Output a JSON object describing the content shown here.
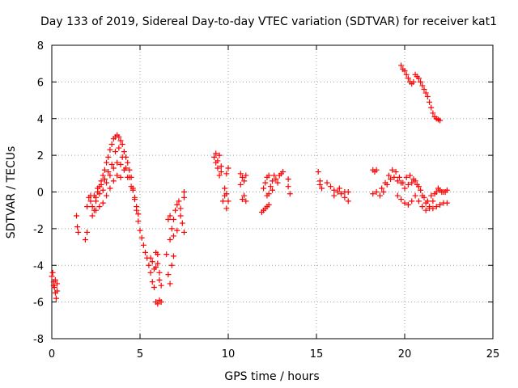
{
  "chart_data": {
    "type": "scatter",
    "title": "Day 133 of 2019, Sidereal Day-to-day VTEC variation (SDTVAR) for receiver kat1",
    "xlabel": "GPS time / hours",
    "ylabel": "SDTVAR / TECUs",
    "xlim": [
      0,
      25
    ],
    "ylim": [
      -8,
      8
    ],
    "xticks": [
      "0",
      "5",
      "10",
      "15",
      "20",
      "25"
    ],
    "yticks": [
      "-8",
      "-6",
      "-4",
      "-2",
      "0",
      "2",
      "4",
      "6",
      "8"
    ],
    "grid": true,
    "marker": "plus",
    "color": "#ff0000",
    "series": [
      {
        "name": "kat1",
        "points": [
          [
            0.0,
            -4.6
          ],
          [
            0.05,
            -4.4
          ],
          [
            0.1,
            -4.9
          ],
          [
            0.15,
            -5.2
          ],
          [
            0.2,
            -5.5
          ],
          [
            0.25,
            -5.8
          ],
          [
            0.3,
            -5.4
          ],
          [
            0.2,
            -4.8
          ],
          [
            0.1,
            -5.1
          ],
          [
            0.3,
            -5.0
          ],
          [
            1.4,
            -1.3
          ],
          [
            1.45,
            -1.9
          ],
          [
            1.5,
            -2.2
          ],
          [
            1.9,
            -2.6
          ],
          [
            2.0,
            -2.2
          ],
          [
            2.0,
            -0.8
          ],
          [
            2.1,
            -0.3
          ],
          [
            2.2,
            -0.2
          ],
          [
            2.3,
            -1.3
          ],
          [
            2.4,
            -1.0
          ],
          [
            2.5,
            -0.5
          ],
          [
            2.6,
            0.0
          ],
          [
            2.7,
            0.3
          ],
          [
            2.8,
            0.6
          ],
          [
            2.9,
            0.9
          ],
          [
            3.0,
            1.2
          ],
          [
            3.1,
            1.6
          ],
          [
            3.2,
            1.9
          ],
          [
            3.3,
            2.3
          ],
          [
            3.4,
            2.6
          ],
          [
            3.5,
            2.9
          ],
          [
            3.6,
            3.0
          ],
          [
            3.7,
            3.1
          ],
          [
            3.8,
            3.0
          ],
          [
            3.9,
            2.8
          ],
          [
            4.0,
            2.6
          ],
          [
            4.1,
            2.2
          ],
          [
            4.2,
            1.9
          ],
          [
            4.3,
            1.6
          ],
          [
            4.4,
            1.2
          ],
          [
            4.5,
            0.8
          ],
          [
            4.6,
            0.2
          ],
          [
            4.7,
            -0.4
          ],
          [
            4.8,
            -1.0
          ],
          [
            4.9,
            -1.6
          ],
          [
            2.2,
            -0.5
          ],
          [
            2.4,
            -0.2
          ],
          [
            2.6,
            0.2
          ],
          [
            2.8,
            0.4
          ],
          [
            3.0,
            0.7
          ],
          [
            3.2,
            1.1
          ],
          [
            3.4,
            1.5
          ],
          [
            3.6,
            2.2
          ],
          [
            3.8,
            2.4
          ],
          [
            4.0,
            1.9
          ],
          [
            4.2,
            1.3
          ],
          [
            4.4,
            0.8
          ],
          [
            4.6,
            0.1
          ],
          [
            4.8,
            -0.8
          ],
          [
            2.3,
            -0.8
          ],
          [
            2.5,
            -0.3
          ],
          [
            2.7,
            -0.1
          ],
          [
            2.9,
            0.1
          ],
          [
            3.1,
            0.5
          ],
          [
            3.3,
            0.9
          ],
          [
            3.5,
            1.3
          ],
          [
            3.7,
            1.6
          ],
          [
            3.9,
            1.5
          ],
          [
            4.1,
            1.2
          ],
          [
            4.3,
            0.8
          ],
          [
            4.5,
            0.3
          ],
          [
            4.7,
            -0.3
          ],
          [
            4.9,
            -1.2
          ],
          [
            2.5,
            -1.0
          ],
          [
            2.7,
            -0.8
          ],
          [
            2.9,
            -0.6
          ],
          [
            3.1,
            -0.2
          ],
          [
            3.3,
            0.2
          ],
          [
            3.5,
            0.6
          ],
          [
            3.7,
            0.9
          ],
          [
            3.9,
            0.8
          ],
          [
            5.0,
            -2.1
          ],
          [
            5.1,
            -2.5
          ],
          [
            5.2,
            -2.9
          ],
          [
            5.3,
            -3.3
          ],
          [
            5.4,
            -3.6
          ],
          [
            5.5,
            -4.0
          ],
          [
            5.6,
            -4.4
          ],
          [
            5.7,
            -4.9
          ],
          [
            5.8,
            -5.2
          ],
          [
            5.6,
            -3.6
          ],
          [
            5.7,
            -3.8
          ],
          [
            5.8,
            -4.2
          ],
          [
            5.9,
            -4.1
          ],
          [
            6.0,
            -3.9
          ],
          [
            6.1,
            -4.4
          ],
          [
            6.1,
            -4.8
          ],
          [
            6.2,
            -5.1
          ],
          [
            6.0,
            -3.4
          ],
          [
            5.9,
            -3.3
          ],
          [
            5.9,
            -6.0
          ],
          [
            6.0,
            -6.1
          ],
          [
            6.1,
            -5.9
          ],
          [
            6.2,
            -6.0
          ],
          [
            6.5,
            -3.4
          ],
          [
            6.6,
            -4.5
          ],
          [
            6.7,
            -5.0
          ],
          [
            6.8,
            -4.0
          ],
          [
            6.9,
            -3.5
          ],
          [
            6.7,
            -2.6
          ],
          [
            6.8,
            -2.0
          ],
          [
            6.9,
            -1.5
          ],
          [
            7.0,
            -1.0
          ],
          [
            7.1,
            -0.7
          ],
          [
            7.2,
            -0.5
          ],
          [
            7.3,
            -1.3
          ],
          [
            7.4,
            -1.7
          ],
          [
            7.5,
            -2.2
          ],
          [
            7.5,
            -0.3
          ],
          [
            7.5,
            0.0
          ],
          [
            6.6,
            -1.5
          ],
          [
            6.7,
            -1.3
          ],
          [
            6.9,
            -2.4
          ],
          [
            7.1,
            -2.1
          ],
          [
            7.3,
            -0.9
          ],
          [
            9.2,
            1.9
          ],
          [
            9.3,
            1.6
          ],
          [
            9.4,
            1.3
          ],
          [
            9.5,
            0.9
          ],
          [
            9.6,
            1.1
          ],
          [
            9.3,
            2.1
          ],
          [
            9.4,
            1.7
          ],
          [
            9.5,
            2.0
          ],
          [
            9.6,
            1.4
          ],
          [
            9.7,
            -0.5
          ],
          [
            9.8,
            -0.2
          ],
          [
            9.9,
            -0.1
          ],
          [
            10.0,
            -0.5
          ],
          [
            9.8,
            0.2
          ],
          [
            9.9,
            1.0
          ],
          [
            10.0,
            1.3
          ],
          [
            9.9,
            -0.9
          ],
          [
            10.7,
            1.0
          ],
          [
            10.8,
            0.8
          ],
          [
            10.9,
            0.6
          ],
          [
            11.0,
            0.9
          ],
          [
            10.8,
            -0.4
          ],
          [
            10.9,
            -0.2
          ],
          [
            11.0,
            -0.5
          ],
          [
            10.7,
            0.4
          ],
          [
            12.0,
            0.2
          ],
          [
            12.1,
            0.5
          ],
          [
            12.2,
            0.8
          ],
          [
            12.3,
            0.9
          ],
          [
            12.4,
            0.3
          ],
          [
            12.5,
            0.6
          ],
          [
            12.6,
            0.9
          ],
          [
            12.7,
            0.7
          ],
          [
            12.8,
            0.5
          ],
          [
            12.9,
            0.9
          ],
          [
            13.0,
            1.0
          ],
          [
            13.1,
            1.1
          ],
          [
            12.2,
            -0.2
          ],
          [
            12.3,
            -0.1
          ],
          [
            12.5,
            0.1
          ],
          [
            11.9,
            -1.1
          ],
          [
            12.0,
            -1.0
          ],
          [
            12.1,
            -0.9
          ],
          [
            12.2,
            -0.8
          ],
          [
            12.3,
            -0.7
          ],
          [
            13.4,
            0.7
          ],
          [
            13.4,
            0.3
          ],
          [
            13.5,
            -0.1
          ],
          [
            15.1,
            1.1
          ],
          [
            15.2,
            0.6
          ],
          [
            15.3,
            0.2
          ],
          [
            15.2,
            0.4
          ],
          [
            15.6,
            0.5
          ],
          [
            15.8,
            0.3
          ],
          [
            16.0,
            0.1
          ],
          [
            16.2,
            0.0
          ],
          [
            16.4,
            -0.1
          ],
          [
            16.6,
            -0.3
          ],
          [
            16.8,
            -0.5
          ],
          [
            16.0,
            -0.2
          ],
          [
            16.3,
            0.2
          ],
          [
            16.6,
            0.0
          ],
          [
            16.8,
            0.0
          ],
          [
            18.2,
            1.2
          ],
          [
            18.3,
            1.1
          ],
          [
            18.4,
            1.2
          ],
          [
            18.2,
            -0.1
          ],
          [
            18.4,
            0.0
          ],
          [
            18.6,
            -0.2
          ],
          [
            18.8,
            0.0
          ],
          [
            19.0,
            0.4
          ],
          [
            19.2,
            0.7
          ],
          [
            19.4,
            0.8
          ],
          [
            19.6,
            0.6
          ],
          [
            19.8,
            0.5
          ],
          [
            20.0,
            0.2
          ],
          [
            20.2,
            0.4
          ],
          [
            20.4,
            0.5
          ],
          [
            20.6,
            0.6
          ],
          [
            20.8,
            0.3
          ],
          [
            21.0,
            -0.2
          ],
          [
            21.2,
            -0.6
          ],
          [
            21.4,
            -0.8
          ],
          [
            21.6,
            -0.5
          ],
          [
            21.8,
            0.0
          ],
          [
            22.0,
            0.1
          ],
          [
            22.2,
            0.0
          ],
          [
            22.4,
            0.1
          ],
          [
            18.7,
            0.2
          ],
          [
            18.9,
            0.5
          ],
          [
            19.1,
            0.9
          ],
          [
            19.3,
            1.2
          ],
          [
            19.5,
            1.1
          ],
          [
            19.7,
            0.8
          ],
          [
            19.9,
            0.5
          ],
          [
            20.1,
            0.8
          ],
          [
            20.3,
            0.9
          ],
          [
            20.5,
            0.7
          ],
          [
            20.7,
            0.4
          ],
          [
            20.9,
            0.1
          ],
          [
            21.1,
            -0.3
          ],
          [
            21.3,
            -0.5
          ],
          [
            21.5,
            -0.2
          ],
          [
            21.7,
            -0.1
          ],
          [
            21.9,
            0.2
          ],
          [
            22.1,
            0.0
          ],
          [
            22.3,
            0.0
          ],
          [
            19.6,
            -0.2
          ],
          [
            19.8,
            -0.4
          ],
          [
            20.0,
            -0.6
          ],
          [
            20.2,
            -0.7
          ],
          [
            20.4,
            -0.5
          ],
          [
            20.6,
            -0.2
          ],
          [
            20.8,
            -0.5
          ],
          [
            21.0,
            -0.8
          ],
          [
            21.2,
            -1.0
          ],
          [
            21.4,
            -0.9
          ],
          [
            21.6,
            -0.9
          ],
          [
            21.8,
            -0.8
          ],
          [
            22.0,
            -0.7
          ],
          [
            22.2,
            -0.6
          ],
          [
            22.4,
            -0.6
          ],
          [
            19.8,
            6.9
          ],
          [
            19.9,
            6.7
          ],
          [
            20.0,
            6.6
          ],
          [
            20.1,
            6.4
          ],
          [
            20.2,
            6.2
          ],
          [
            20.3,
            6.0
          ],
          [
            20.4,
            5.9
          ],
          [
            20.5,
            6.0
          ],
          [
            20.6,
            6.4
          ],
          [
            20.7,
            6.3
          ],
          [
            20.8,
            6.2
          ],
          [
            20.9,
            6.0
          ],
          [
            21.0,
            5.8
          ],
          [
            21.1,
            5.6
          ],
          [
            21.2,
            5.4
          ],
          [
            21.3,
            5.2
          ],
          [
            21.4,
            4.9
          ],
          [
            21.5,
            4.6
          ],
          [
            21.6,
            4.3
          ],
          [
            21.7,
            4.1
          ],
          [
            21.8,
            4.0
          ],
          [
            21.9,
            3.95
          ],
          [
            22.0,
            3.9
          ]
        ]
      }
    ]
  }
}
